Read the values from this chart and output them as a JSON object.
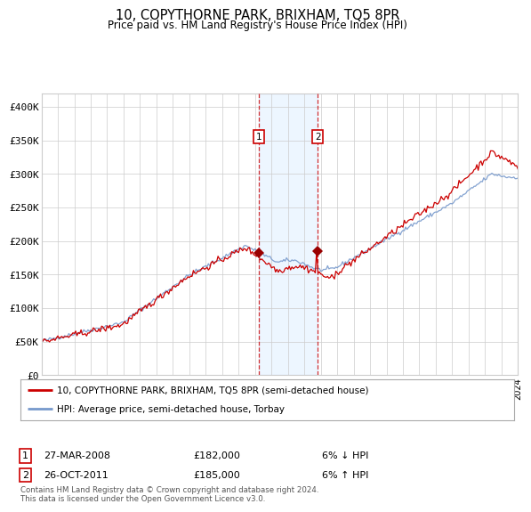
{
  "title": "10, COPYTHORNE PARK, BRIXHAM, TQ5 8PR",
  "subtitle": "Price paid vs. HM Land Registry's House Price Index (HPI)",
  "ylabel_ticks": [
    "£0",
    "£50K",
    "£100K",
    "£150K",
    "£200K",
    "£250K",
    "£300K",
    "£350K",
    "£400K"
  ],
  "ytick_values": [
    0,
    50000,
    100000,
    150000,
    200000,
    250000,
    300000,
    350000,
    400000
  ],
  "ylim": [
    0,
    420000
  ],
  "sale1": {
    "date": "27-MAR-2008",
    "price": 182000,
    "label": "1",
    "pct": "6% ↓ HPI"
  },
  "sale2": {
    "date": "26-OCT-2011",
    "price": 185000,
    "label": "2",
    "pct": "6% ↑ HPI"
  },
  "line_red_label": "10, COPYTHORNE PARK, BRIXHAM, TQ5 8PR (semi-detached house)",
  "line_blue_label": "HPI: Average price, semi-detached house, Torbay",
  "line_red_color": "#cc0000",
  "line_blue_color": "#7799cc",
  "shade_color": "#ddeeff",
  "grid_color": "#cccccc",
  "background_color": "#ffffff",
  "footnote": "Contains HM Land Registry data © Crown copyright and database right 2024.\nThis data is licensed under the Open Government Licence v3.0.",
  "box_color": "#cc0000"
}
